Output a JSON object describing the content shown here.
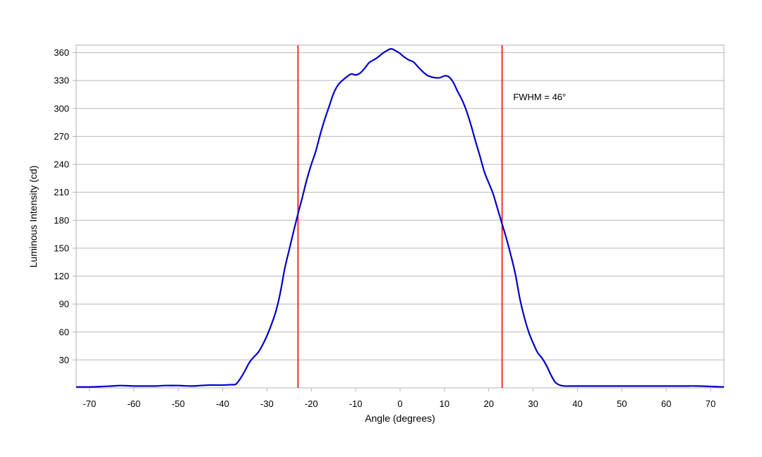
{
  "chart_data": {
    "type": "line",
    "xlabel": "Angle (degrees)",
    "ylabel": "Luminous Intensity (cd)",
    "xlim": [
      -73,
      73
    ],
    "ylim": [
      0,
      368
    ],
    "xticks": [
      -70,
      -60,
      -50,
      -40,
      -30,
      -20,
      -10,
      0,
      10,
      20,
      30,
      40,
      50,
      60,
      70
    ],
    "yticks": [
      30,
      60,
      90,
      120,
      150,
      180,
      210,
      240,
      270,
      300,
      330,
      360
    ],
    "grid": "horizontal",
    "series": [
      {
        "color": "#0000cc",
        "x": [
          -73,
          -70,
          -67,
          -65,
          -63,
          -60,
          -57,
          -55,
          -53,
          -50,
          -47,
          -45,
          -43,
          -40,
          -38,
          -37,
          -36,
          -35,
          -34,
          -33,
          -32,
          -31,
          -30,
          -29,
          -28,
          -27,
          -26,
          -25,
          -24,
          -23,
          -22,
          -21,
          -20,
          -19,
          -18,
          -17,
          -16,
          -15,
          -14,
          -13,
          -12,
          -11,
          -10,
          -9,
          -8,
          -7,
          -6,
          -5,
          -4,
          -3,
          -2,
          -1,
          0,
          1,
          2,
          3,
          4,
          5,
          6,
          7,
          8,
          9,
          10,
          11,
          12,
          13,
          14,
          15,
          16,
          17,
          18,
          19,
          20,
          21,
          22,
          23,
          24,
          25,
          26,
          27,
          28,
          29,
          30,
          31,
          32,
          33,
          34,
          35,
          36,
          37,
          38,
          40,
          43,
          45,
          47,
          50,
          53,
          55,
          57,
          60,
          63,
          65,
          67,
          70,
          73
        ],
        "values": [
          1,
          1,
          1.5,
          2,
          2.5,
          2,
          2,
          2,
          2.5,
          2.5,
          2,
          2.5,
          3,
          3,
          3.5,
          4,
          10,
          18,
          27,
          33,
          38,
          46,
          56,
          68,
          82,
          102,
          128,
          148,
          168,
          187,
          205,
          224,
          240,
          254,
          272,
          288,
          302,
          316,
          325,
          330,
          334,
          337,
          336,
          338,
          343,
          349,
          352,
          355,
          359,
          362,
          364,
          362,
          359,
          355,
          352,
          350,
          345,
          340,
          336,
          334,
          333,
          333,
          335,
          334,
          328,
          318,
          309,
          297,
          282,
          265,
          249,
          232,
          220,
          208,
          192,
          176,
          160,
          142,
          122,
          96,
          76,
          60,
          48,
          38,
          32,
          24,
          14,
          6,
          3,
          2,
          2,
          2,
          2,
          2,
          2,
          2,
          2,
          2,
          2,
          2,
          2,
          2,
          2,
          1.5,
          1
        ]
      }
    ],
    "reference_lines": [
      {
        "x": -23,
        "color": "#ff0000"
      },
      {
        "x": 23,
        "color": "#ff0000"
      }
    ],
    "annotations": [
      {
        "text": "FWHM = 46°",
        "x": 25.5,
        "y": 312
      }
    ]
  }
}
